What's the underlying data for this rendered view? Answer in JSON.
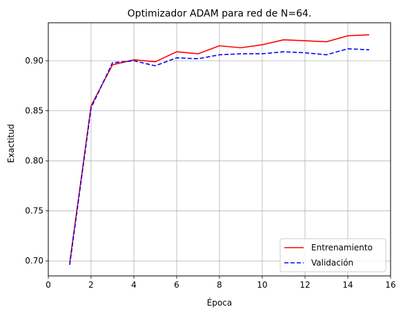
{
  "chart_data": {
    "type": "line",
    "title": "Optimizador ADAM para red de N=64.",
    "xlabel": "Época",
    "ylabel": "Exactitud",
    "xlim": [
      0,
      16
    ],
    "ylim": [
      0.685,
      0.938
    ],
    "xticks": [
      0,
      2,
      4,
      6,
      8,
      10,
      12,
      14,
      16
    ],
    "yticks": [
      0.7,
      0.75,
      0.8,
      0.85,
      0.9
    ],
    "ytick_labels": [
      "0.70",
      "0.75",
      "0.80",
      "0.85",
      "0.90"
    ],
    "grid": true,
    "legend_position": "lower-right",
    "x": [
      1,
      2,
      3,
      4,
      5,
      6,
      7,
      8,
      9,
      10,
      11,
      12,
      13,
      14,
      15
    ],
    "series": [
      {
        "name": "Entrenamiento",
        "color": "#ff0000",
        "linestyle": "solid",
        "values": [
          0.698,
          0.855,
          0.896,
          0.901,
          0.899,
          0.909,
          0.907,
          0.915,
          0.913,
          0.916,
          0.921,
          0.92,
          0.919,
          0.925,
          0.926
        ]
      },
      {
        "name": "Validación",
        "color": "#0000ff",
        "linestyle": "dashed",
        "values": [
          0.696,
          0.853,
          0.898,
          0.9,
          0.895,
          0.903,
          0.902,
          0.906,
          0.907,
          0.907,
          0.909,
          0.908,
          0.906,
          0.912,
          0.911
        ]
      }
    ]
  }
}
